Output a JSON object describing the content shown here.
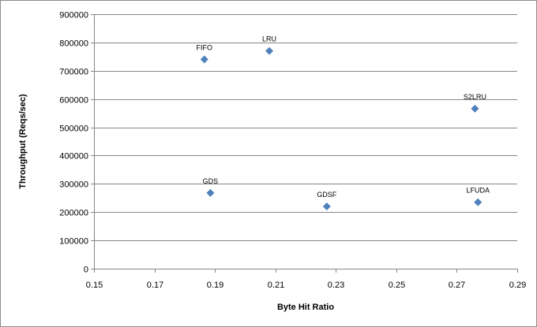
{
  "chart_data": {
    "type": "scatter",
    "title": "",
    "xlabel": "Byte Hit Ratio",
    "ylabel": "Throughput (Reqs/sec)",
    "xlim": [
      0.15,
      0.29
    ],
    "ylim": [
      0,
      900000
    ],
    "x_ticks": [
      "0.15",
      "0.17",
      "0.19",
      "0.21",
      "0.23",
      "0.25",
      "0.27",
      "0.29"
    ],
    "y_ticks": [
      "0",
      "100000",
      "200000",
      "300000",
      "400000",
      "500000",
      "600000",
      "700000",
      "800000",
      "900000"
    ],
    "grid": "horizontal",
    "legend": "none",
    "marker": "diamond",
    "marker_color": "#4f81bd",
    "gridline_color": "#868686",
    "points": [
      {
        "label": "FIFO",
        "x": 0.1865,
        "y": 740000
      },
      {
        "label": "LRU",
        "x": 0.208,
        "y": 770000
      },
      {
        "label": "S2LRU",
        "x": 0.276,
        "y": 566000
      },
      {
        "label": "GDS",
        "x": 0.1885,
        "y": 268000
      },
      {
        "label": "GDSF",
        "x": 0.227,
        "y": 220000
      },
      {
        "label": "LFUDA",
        "x": 0.277,
        "y": 235000
      }
    ]
  }
}
